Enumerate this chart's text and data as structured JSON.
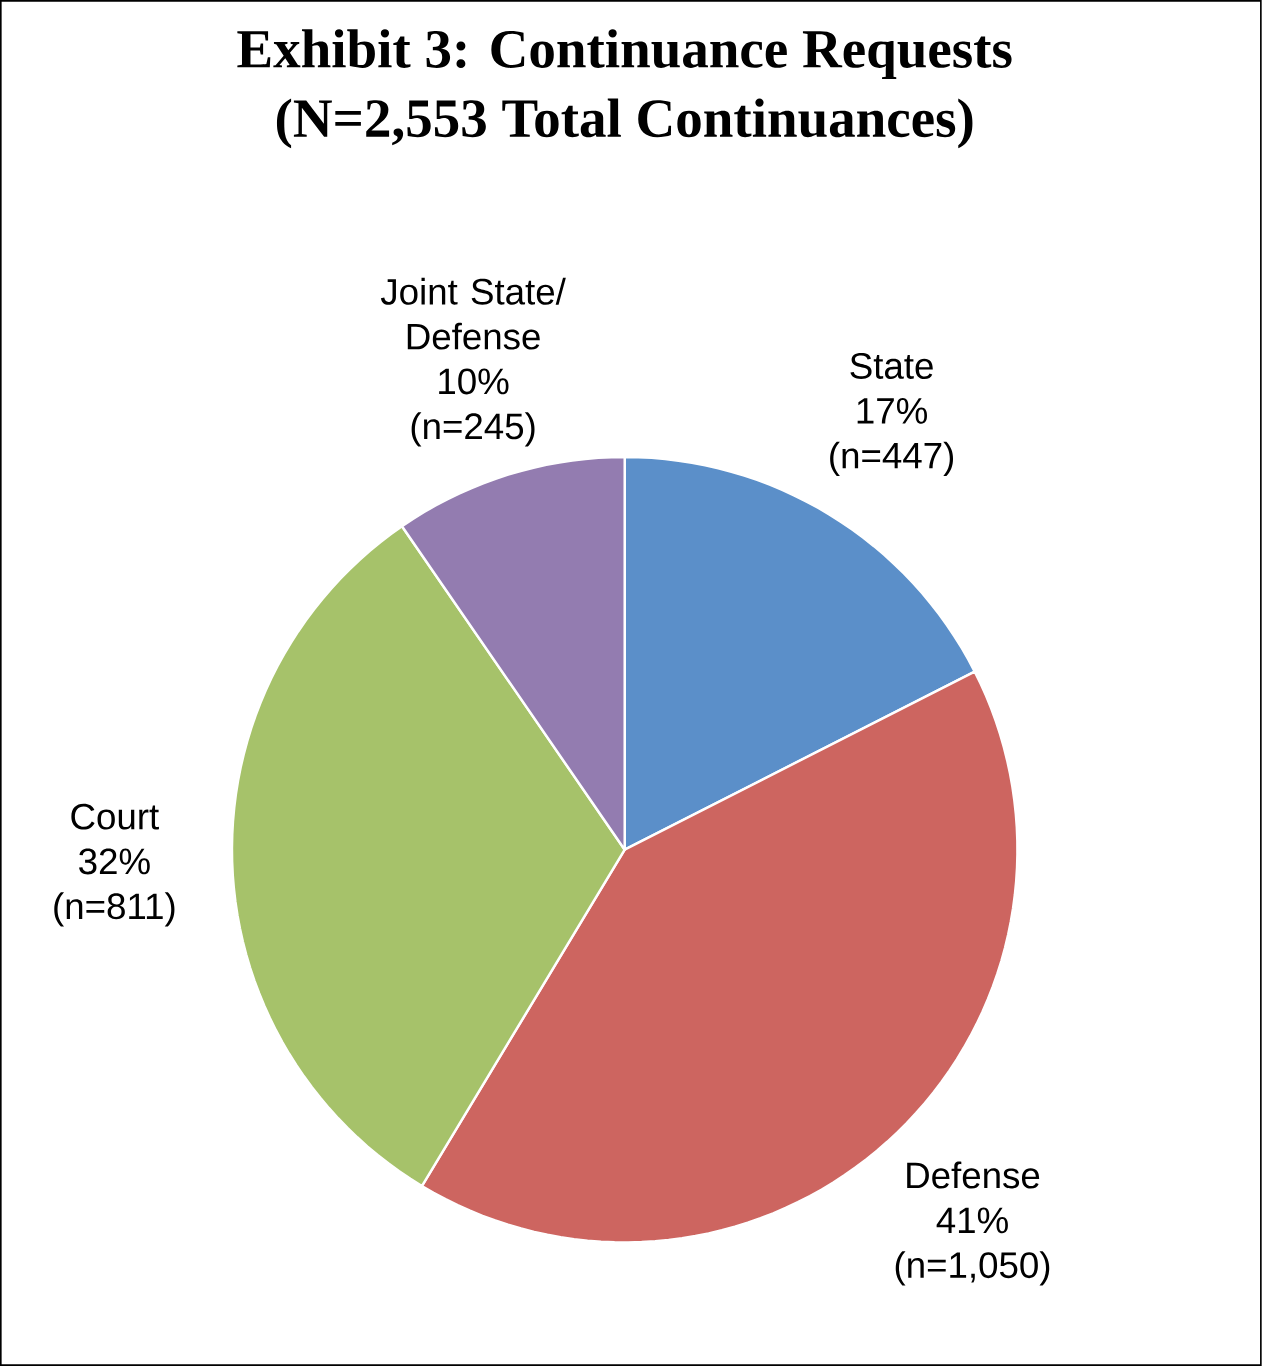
{
  "chart_data": {
    "type": "pie",
    "title": "Exhibit 3: Continuance Requests",
    "subtitle": "(N=2,553 Total Continuances)",
    "categories": [
      "State",
      "Defense",
      "Court",
      "Joint State/ Defense"
    ],
    "values": [
      447,
      1050,
      811,
      245
    ],
    "colors": [
      "#5b8fc9",
      "#cd6560",
      "#a6c26a",
      "#937cb0"
    ],
    "value_labels": [
      "17% (n=447)",
      "41% (n=1,050)",
      "32% (n=811)",
      "10% (n=245)"
    ]
  }
}
